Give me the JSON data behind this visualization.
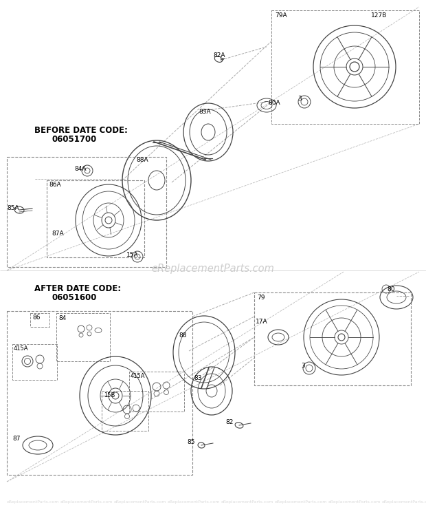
{
  "bg_color": "#ffffff",
  "lc": "#444444",
  "lc_light": "#888888",
  "watermark": "eReplacementParts.com",
  "before_text_line1": "BEFORE DATE CODE:",
  "before_text_line2": "06051700",
  "after_text_line1": "AFTER DATE CODE:",
  "after_text_line2": "06051600",
  "fig_w": 6.2,
  "fig_h": 7.44,
  "dpi": 100
}
